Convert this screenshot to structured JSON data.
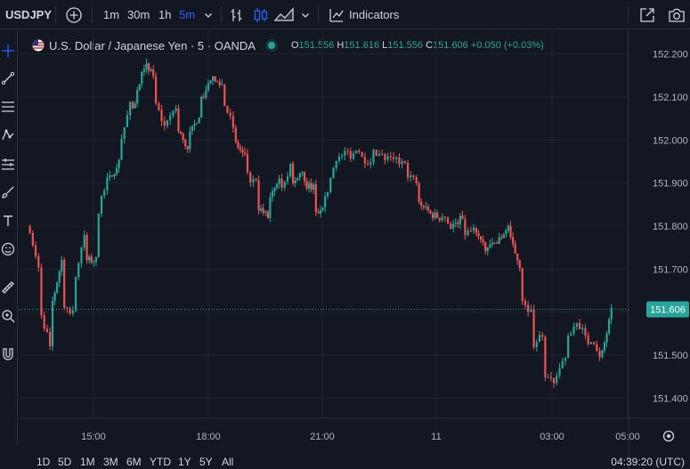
{
  "toolbar": {
    "symbol": "USDJPY",
    "timeframes": [
      "1m",
      "30m",
      "1h",
      "5m"
    ],
    "active_timeframe": "5m",
    "indicators_label": "Indicators"
  },
  "legend": {
    "title": "U.S. Dollar / Japanese Yen · 5 · OANDA",
    "open_label": "O",
    "open": "151.556",
    "high_label": "H",
    "high": "151.616",
    "low_label": "L",
    "low": "151.556",
    "close_label": "C",
    "close": "151.606",
    "change": "+0.050 (+0.03%)"
  },
  "bottom": {
    "ranges": [
      "1D",
      "5D",
      "1M",
      "3M",
      "6M",
      "YTD",
      "1Y",
      "5Y",
      "All"
    ],
    "clock": "04:39:20 (UTC)"
  },
  "colors": {
    "up": "#26a69a",
    "down": "#ef5350",
    "background": "#131722",
    "grid": "#1f2330",
    "accent": "#2962ff"
  },
  "icons": [
    "crosshair-icon",
    "trend-line-icon",
    "fib-icon",
    "pattern-icon",
    "prediction-icon",
    "brush-icon",
    "text-icon",
    "emoji-icon",
    "ruler-icon",
    "zoom-icon",
    "magnet-icon",
    "add-symbol-icon",
    "bar-style-icon",
    "candles-icon",
    "area-icon",
    "indicators-icon",
    "fullscreen-icon",
    "snapshot-icon",
    "settings-icon"
  ],
  "chart_data": {
    "type": "candlestick",
    "y_ticks": [
      "152.200",
      "152.100",
      "152.000",
      "151.900",
      "151.800",
      "151.700",
      "151.600",
      "151.500",
      "151.400"
    ],
    "x_ticks": [
      "15:00",
      "18:00",
      "21:00",
      "11",
      "03:00",
      "05:00"
    ],
    "ylim": [
      151.355,
      152.255
    ],
    "last_price": "151.606",
    "price_path": [
      [
        151.8,
        151.7
      ],
      [
        151.62,
        151.52
      ],
      [
        151.6,
        151.72
      ],
      [
        151.62,
        151.6
      ],
      [
        151.65,
        151.78
      ],
      [
        151.72,
        151.72
      ],
      [
        151.8,
        151.92
      ],
      [
        151.9,
        151.95
      ],
      [
        151.98,
        152.08
      ],
      [
        152.05,
        152.15
      ],
      [
        152.18,
        152.15
      ],
      [
        152.1,
        152.03
      ],
      [
        152.03,
        152.08
      ],
      [
        152.03,
        151.98
      ],
      [
        152.0,
        152.06
      ],
      [
        152.08,
        152.14
      ],
      [
        152.14,
        152.13
      ],
      [
        152.1,
        152.03
      ],
      [
        152.0,
        151.96
      ],
      [
        151.92,
        151.9
      ],
      [
        151.85,
        151.82
      ],
      [
        151.86,
        151.92
      ],
      [
        151.88,
        151.94
      ],
      [
        151.88,
        151.93
      ],
      [
        151.9,
        151.89
      ],
      [
        151.82,
        151.86
      ],
      [
        151.86,
        151.96
      ],
      [
        151.95,
        151.97
      ],
      [
        151.96,
        151.98
      ],
      [
        151.96,
        151.95
      ],
      [
        151.97,
        151.96
      ],
      [
        151.96,
        151.95
      ],
      [
        151.96,
        151.94
      ],
      [
        151.93,
        151.9
      ],
      [
        151.86,
        151.84
      ],
      [
        151.83,
        151.82
      ],
      [
        151.84,
        151.8
      ],
      [
        151.8,
        151.82
      ],
      [
        151.78,
        151.79
      ],
      [
        151.8,
        151.74
      ],
      [
        151.75,
        151.76
      ],
      [
        151.76,
        151.8
      ],
      [
        151.78,
        151.71
      ],
      [
        151.64,
        151.6
      ],
      [
        151.52,
        151.55
      ],
      [
        151.46,
        151.43
      ],
      [
        151.44,
        151.5
      ],
      [
        151.52,
        151.58
      ],
      [
        151.58,
        151.53
      ],
      [
        151.55,
        151.5
      ],
      [
        151.48,
        151.6
      ]
    ]
  }
}
